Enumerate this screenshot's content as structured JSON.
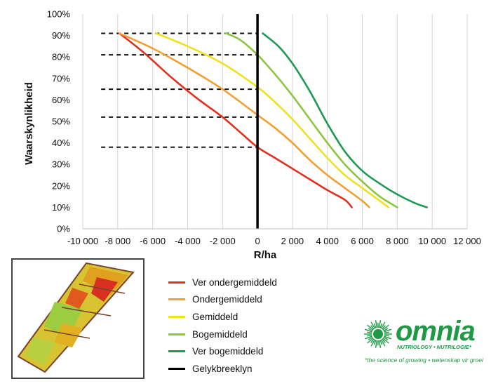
{
  "chart_data": {
    "type": "line",
    "xlabel": "R/ha",
    "ylabel": "Waarskynlikheid",
    "xlim": [
      -10000,
      12000
    ],
    "ylim": [
      0,
      100
    ],
    "x_ticks": [
      "-10 000",
      "-8 000",
      "-6 000",
      "-4 000",
      "-2 000",
      "0",
      "2 000",
      "4 000",
      "6 000",
      "8 000",
      "10 000",
      "12 000"
    ],
    "y_ticks": [
      "0%",
      "10%",
      "20%",
      "30%",
      "40%",
      "50%",
      "60%",
      "70%",
      "80%",
      "90%",
      "100%"
    ],
    "grid": "vertical",
    "break_even_x": 0,
    "dashed_reference_levels": [
      91,
      81,
      65,
      52,
      38
    ],
    "series": [
      {
        "name": "Ver ondergemiddeld",
        "color": "#e03020",
        "x": [
          -7900,
          -6500,
          -5000,
          -3500,
          -2000,
          -1000,
          0,
          1000,
          2000,
          3000,
          4000,
          5000,
          5400
        ],
        "y": [
          91,
          82,
          71,
          61,
          52,
          45,
          38,
          33,
          28,
          23,
          18,
          13.5,
          10
        ]
      },
      {
        "name": "Ondergemiddeld",
        "color": "#f0a030",
        "x": [
          -7900,
          -6000,
          -4000,
          -2000,
          0,
          1000,
          2000,
          3000,
          4000,
          5000,
          6000,
          6400
        ],
        "y": [
          91,
          84,
          75,
          65,
          53,
          47,
          40,
          32,
          25,
          19,
          13,
          10
        ]
      },
      {
        "name": "Gemiddeld",
        "color": "#f0e020",
        "x": [
          -5800,
          -4000,
          -2000,
          0,
          1000,
          2000,
          3000,
          4000,
          5000,
          6000,
          7000,
          7500
        ],
        "y": [
          91,
          85,
          77,
          66,
          59,
          51,
          42,
          33,
          25,
          19,
          13,
          10
        ]
      },
      {
        "name": "Bogemiddeld",
        "color": "#8cc63f",
        "x": [
          -1800,
          -1000,
          0,
          1000,
          2000,
          3000,
          4000,
          5000,
          6000,
          7000,
          8000
        ],
        "y": [
          91,
          88,
          81,
          72,
          62,
          51,
          40,
          30,
          22,
          15,
          10
        ]
      },
      {
        "name": "Ver bogemiddeld",
        "color": "#1e9a55",
        "x": [
          300,
          1200,
          2000,
          3000,
          4000,
          5000,
          6000,
          7000,
          8000,
          9000,
          9700
        ],
        "y": [
          91,
          85,
          77,
          64,
          49,
          36,
          27,
          21,
          16,
          12,
          10
        ]
      },
      {
        "name": "Gelykbreeklyn",
        "color": "#000000",
        "x": [
          0,
          0
        ],
        "y": [
          0,
          100
        ]
      }
    ]
  },
  "logo": {
    "word": "omnia",
    "subline": "NUTRIOLOGY • NUTRILOGIE*",
    "tagline": "*the science of growing • wetenskap vir groei",
    "color": "#1e9a44"
  }
}
